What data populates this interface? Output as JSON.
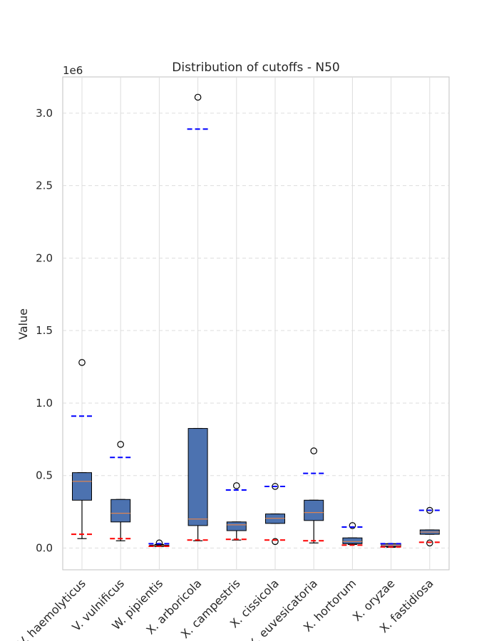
{
  "chart_data": {
    "type": "box",
    "title": "Distribution of cutoffs - N50",
    "ylabel": "Value",
    "xlabel": "",
    "scale_label": "1e6",
    "ylim": [
      -0.15,
      3.25
    ],
    "yticks": [
      0.0,
      0.5,
      1.0,
      1.5,
      2.0,
      2.5,
      3.0
    ],
    "ytick_labels": [
      "0.0",
      "0.5",
      "1.0",
      "1.5",
      "2.0",
      "2.5",
      "3.0"
    ],
    "grid": true,
    "colors": {
      "box_fill": "#4c72b0",
      "median": "#dd8452",
      "upper_cutoff": "#0000ff",
      "lower_cutoff": "#ff0000",
      "grid": "#dddddd",
      "axis": "#cccccc",
      "text": "#262626"
    },
    "categories": [
      "V. haemolyticus",
      "V. vulnificus",
      "W. pipientis",
      "X. arboricola",
      "X. campestris",
      "X. cissicola",
      "X. euvesicatoria",
      "X. hortorum",
      "X. oryzae",
      "X. fastidiosa"
    ],
    "boxes": [
      {
        "whislo": 0.065,
        "q1": 0.33,
        "med": 0.46,
        "q3": 0.52,
        "whishi": 0.52,
        "fliers": [
          1.28
        ],
        "upper_cutoff": 0.91,
        "lower_cutoff": 0.095
      },
      {
        "whislo": 0.05,
        "q1": 0.18,
        "med": 0.24,
        "q3": 0.335,
        "whishi": 0.335,
        "fliers": [
          0.715
        ],
        "upper_cutoff": 0.625,
        "lower_cutoff": 0.065
      },
      {
        "whislo": 0.01,
        "q1": 0.012,
        "med": 0.015,
        "q3": 0.02,
        "whishi": 0.025,
        "fliers": [
          0.035
        ],
        "upper_cutoff": 0.03,
        "lower_cutoff": 0.012
      },
      {
        "whislo": 0.05,
        "q1": 0.155,
        "med": 0.2,
        "q3": 0.825,
        "whishi": 0.825,
        "fliers": [
          3.11
        ],
        "upper_cutoff": 2.89,
        "lower_cutoff": 0.055
      },
      {
        "whislo": 0.055,
        "q1": 0.12,
        "med": 0.16,
        "q3": 0.18,
        "whishi": 0.18,
        "fliers": [
          0.43
        ],
        "upper_cutoff": 0.4,
        "lower_cutoff": 0.06
      },
      {
        "whislo": 0.17,
        "q1": 0.17,
        "med": 0.205,
        "q3": 0.235,
        "whishi": 0.235,
        "fliers": [
          0.425,
          0.045
        ],
        "upper_cutoff": 0.425,
        "lower_cutoff": 0.055
      },
      {
        "whislo": 0.035,
        "q1": 0.19,
        "med": 0.245,
        "q3": 0.33,
        "whishi": 0.33,
        "fliers": [
          0.67
        ],
        "upper_cutoff": 0.515,
        "lower_cutoff": 0.05
      },
      {
        "whislo": 0.025,
        "q1": 0.03,
        "med": 0.045,
        "q3": 0.07,
        "whishi": 0.07,
        "fliers": [
          0.155
        ],
        "upper_cutoff": 0.145,
        "lower_cutoff": 0.02
      },
      {
        "whislo": 0.005,
        "q1": 0.01,
        "med": 0.02,
        "q3": 0.03,
        "whishi": 0.03,
        "fliers": [],
        "upper_cutoff": 0.03,
        "lower_cutoff": 0.008
      },
      {
        "whislo": 0.095,
        "q1": 0.095,
        "med": 0.11,
        "q3": 0.125,
        "whishi": 0.125,
        "fliers": [
          0.26,
          0.035
        ],
        "upper_cutoff": 0.26,
        "lower_cutoff": 0.04
      }
    ]
  }
}
